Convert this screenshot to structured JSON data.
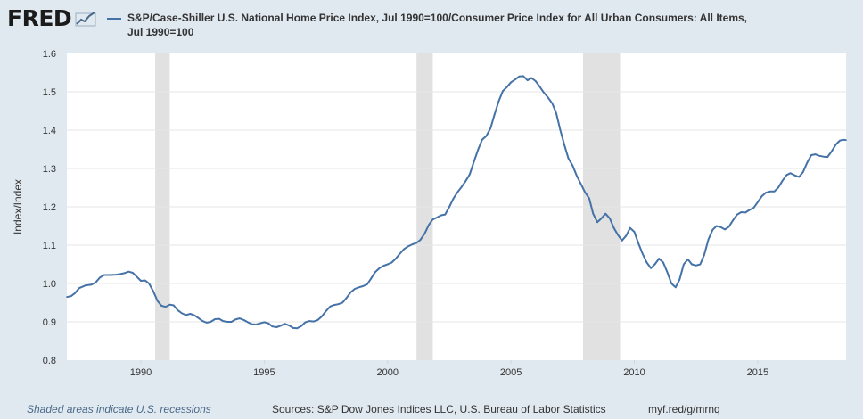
{
  "header": {
    "logo_text": "FRED",
    "legend_label": "S&P/Case-Shiller U.S. National Home Price Index, Jul 1990=100/Consumer Price Index for All Urban Consumers: All Items, Jul 1990=100"
  },
  "footer": {
    "recession_note": "Shaded areas indicate U.S. recessions",
    "sources": "Sources: S&P Dow Jones Indices LLC, U.S. Bureau of Labor Statistics",
    "link": "myf.red/g/mrnq"
  },
  "colors": {
    "line": "#4572a7",
    "recession": "#e1e1e1",
    "grid": "#e6e6e6",
    "page_bg": "#e1e9f0",
    "plot_bg": "#ffffff"
  },
  "chart_data": {
    "type": "line",
    "title": "",
    "xlabel": "",
    "ylabel": "Index/Index",
    "xlim": [
      1987.0,
      2018.58
    ],
    "ylim": [
      0.8,
      1.6
    ],
    "y_ticks": [
      "0.8",
      "0.9",
      "1.0",
      "1.1",
      "1.2",
      "1.3",
      "1.4",
      "1.5",
      "1.6"
    ],
    "x_ticks": [
      "1990",
      "1995",
      "2000",
      "2005",
      "2010",
      "2015"
    ],
    "grid": true,
    "recessions": [
      [
        1990.58,
        1991.17
      ],
      [
        2001.17,
        2001.83
      ],
      [
        2007.92,
        2009.42
      ]
    ],
    "series": [
      {
        "name": "S&P/Case-Shiller U.S. National Home Price Index, Jul 1990=100/Consumer Price Index for All Urban Consumers: All Items, Jul 1990=100",
        "x": [
          1987.0,
          1987.17,
          1987.33,
          1987.5,
          1987.75,
          1988.0,
          1988.17,
          1988.33,
          1988.5,
          1988.75,
          1989.0,
          1989.17,
          1989.33,
          1989.5,
          1989.67,
          1989.83,
          1990.0,
          1990.17,
          1990.33,
          1990.5,
          1990.67,
          1990.83,
          1991.0,
          1991.17,
          1991.33,
          1991.5,
          1991.67,
          1991.83,
          1992.0,
          1992.17,
          1992.33,
          1992.5,
          1992.67,
          1992.83,
          1993.0,
          1993.17,
          1993.33,
          1993.5,
          1993.67,
          1993.83,
          1994.0,
          1994.17,
          1994.33,
          1994.5,
          1994.67,
          1994.83,
          1995.0,
          1995.17,
          1995.33,
          1995.5,
          1995.67,
          1995.83,
          1996.0,
          1996.17,
          1996.33,
          1996.5,
          1996.67,
          1996.83,
          1997.0,
          1997.17,
          1997.33,
          1997.5,
          1997.67,
          1997.83,
          1998.0,
          1998.17,
          1998.33,
          1998.5,
          1998.67,
          1998.83,
          1999.0,
          1999.17,
          1999.33,
          1999.5,
          1999.67,
          1999.83,
          2000.0,
          2000.17,
          2000.33,
          2000.5,
          2000.67,
          2000.83,
          2001.0,
          2001.17,
          2001.33,
          2001.5,
          2001.67,
          2001.83,
          2002.0,
          2002.17,
          2002.33,
          2002.5,
          2002.67,
          2002.83,
          2003.0,
          2003.17,
          2003.33,
          2003.5,
          2003.67,
          2003.83,
          2004.0,
          2004.17,
          2004.33,
          2004.5,
          2004.67,
          2004.83,
          2005.0,
          2005.17,
          2005.33,
          2005.5,
          2005.67,
          2005.83,
          2006.0,
          2006.17,
          2006.33,
          2006.5,
          2006.67,
          2006.83,
          2007.0,
          2007.17,
          2007.33,
          2007.5,
          2007.67,
          2007.83,
          2008.0,
          2008.17,
          2008.33,
          2008.5,
          2008.67,
          2008.83,
          2009.0,
          2009.17,
          2009.33,
          2009.5,
          2009.67,
          2009.83,
          2010.0,
          2010.17,
          2010.33,
          2010.5,
          2010.67,
          2010.83,
          2011.0,
          2011.17,
          2011.33,
          2011.5,
          2011.67,
          2011.83,
          2012.0,
          2012.17,
          2012.33,
          2012.5,
          2012.67,
          2012.83,
          2013.0,
          2013.17,
          2013.33,
          2013.5,
          2013.67,
          2013.83,
          2014.0,
          2014.17,
          2014.33,
          2014.5,
          2014.67,
          2014.83,
          2015.0,
          2015.17,
          2015.33,
          2015.5,
          2015.67,
          2015.83,
          2016.0,
          2016.17,
          2016.33,
          2016.5,
          2016.67,
          2016.83,
          2017.0,
          2017.17,
          2017.33,
          2017.5,
          2017.67,
          2017.83,
          2018.0,
          2018.17,
          2018.33,
          2018.5,
          2018.58
        ],
        "values": [
          0.965,
          0.967,
          0.975,
          0.988,
          0.995,
          0.997,
          1.003,
          1.015,
          1.022,
          1.022,
          1.023,
          1.025,
          1.027,
          1.031,
          1.028,
          1.018,
          1.007,
          1.008,
          1.0,
          0.98,
          0.955,
          0.942,
          0.939,
          0.945,
          0.943,
          0.93,
          0.922,
          0.918,
          0.921,
          0.917,
          0.91,
          0.902,
          0.898,
          0.9,
          0.907,
          0.908,
          0.902,
          0.9,
          0.9,
          0.906,
          0.909,
          0.905,
          0.899,
          0.894,
          0.893,
          0.896,
          0.899,
          0.896,
          0.888,
          0.886,
          0.89,
          0.895,
          0.891,
          0.884,
          0.883,
          0.889,
          0.899,
          0.902,
          0.901,
          0.905,
          0.914,
          0.928,
          0.94,
          0.944,
          0.946,
          0.95,
          0.962,
          0.977,
          0.986,
          0.99,
          0.993,
          0.998,
          1.013,
          1.03,
          1.04,
          1.046,
          1.05,
          1.055,
          1.065,
          1.078,
          1.09,
          1.097,
          1.102,
          1.106,
          1.114,
          1.13,
          1.153,
          1.167,
          1.172,
          1.178,
          1.18,
          1.2,
          1.222,
          1.238,
          1.252,
          1.268,
          1.285,
          1.318,
          1.35,
          1.375,
          1.385,
          1.405,
          1.44,
          1.475,
          1.502,
          1.512,
          1.525,
          1.532,
          1.54,
          1.541,
          1.53,
          1.536,
          1.528,
          1.513,
          1.498,
          1.485,
          1.47,
          1.445,
          1.4,
          1.36,
          1.326,
          1.307,
          1.28,
          1.26,
          1.238,
          1.222,
          1.182,
          1.16,
          1.17,
          1.182,
          1.17,
          1.145,
          1.127,
          1.112,
          1.125,
          1.145,
          1.135,
          1.104,
          1.078,
          1.055,
          1.04,
          1.05,
          1.065,
          1.055,
          1.03,
          1.0,
          0.99,
          1.01,
          1.05,
          1.063,
          1.05,
          1.047,
          1.05,
          1.075,
          1.115,
          1.14,
          1.15,
          1.147,
          1.141,
          1.148,
          1.165,
          1.18,
          1.186,
          1.185,
          1.192,
          1.197,
          1.212,
          1.228,
          1.237,
          1.24,
          1.24,
          1.25,
          1.268,
          1.283,
          1.288,
          1.282,
          1.278,
          1.29,
          1.315,
          1.335,
          1.337,
          1.333,
          1.331,
          1.33,
          1.345,
          1.363,
          1.373,
          1.375,
          1.374
        ]
      }
    ]
  }
}
